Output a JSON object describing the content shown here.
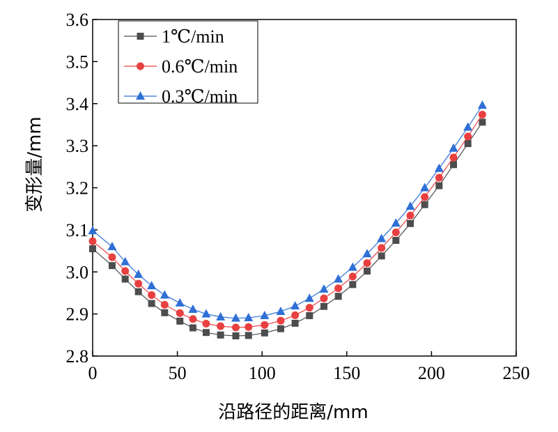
{
  "chart_data": {
    "type": "line",
    "xlabel": "沿路径的距离/mm",
    "ylabel": "变形量/mm",
    "xlim": [
      0,
      250
    ],
    "ylim": [
      2.8,
      3.6
    ],
    "xticks": [
      "0",
      "50",
      "100",
      "150",
      "200",
      "250"
    ],
    "yticks": [
      "2.8",
      "2.9",
      "3.0",
      "3.1",
      "3.2",
      "3.3",
      "3.4",
      "3.5",
      "3.6"
    ],
    "grid": false,
    "legend_position": "top-left",
    "x": [
      0,
      11.5,
      19.2,
      27,
      34.8,
      42.5,
      51.5,
      59.2,
      67,
      75.5,
      84.5,
      92,
      101.5,
      111,
      119.5,
      128,
      136.5,
      145,
      153.5,
      162,
      170.5,
      179,
      187.5,
      196,
      204.5,
      213,
      221.5,
      230
    ],
    "series": [
      {
        "name": "1℃/min",
        "color": "#4d4d4d",
        "marker": "square",
        "values": [
          3.055,
          3.015,
          2.983,
          2.953,
          2.925,
          2.903,
          2.883,
          2.867,
          2.856,
          2.85,
          2.848,
          2.849,
          2.855,
          2.865,
          2.878,
          2.896,
          2.918,
          2.942,
          2.97,
          3.002,
          3.038,
          3.075,
          3.115,
          3.16,
          3.205,
          3.255,
          3.305,
          3.356
        ]
      },
      {
        "name": "0.6℃/min",
        "color": "#e84040",
        "marker": "circle",
        "values": [
          3.073,
          3.035,
          3.002,
          2.972,
          2.945,
          2.922,
          2.902,
          2.888,
          2.877,
          2.871,
          2.868,
          2.869,
          2.874,
          2.884,
          2.897,
          2.915,
          2.937,
          2.961,
          2.989,
          3.021,
          3.057,
          3.094,
          3.134,
          3.178,
          3.224,
          3.272,
          3.322,
          3.374
        ]
      },
      {
        "name": "0.3℃/min",
        "color": "#2f6fd6",
        "marker": "triangle",
        "values": [
          3.098,
          3.06,
          3.024,
          2.994,
          2.967,
          2.945,
          2.926,
          2.911,
          2.9,
          2.893,
          2.89,
          2.891,
          2.896,
          2.906,
          2.919,
          2.937,
          2.959,
          2.983,
          3.011,
          3.043,
          3.079,
          3.116,
          3.156,
          3.2,
          3.246,
          3.294,
          3.344,
          3.396
        ]
      }
    ]
  }
}
